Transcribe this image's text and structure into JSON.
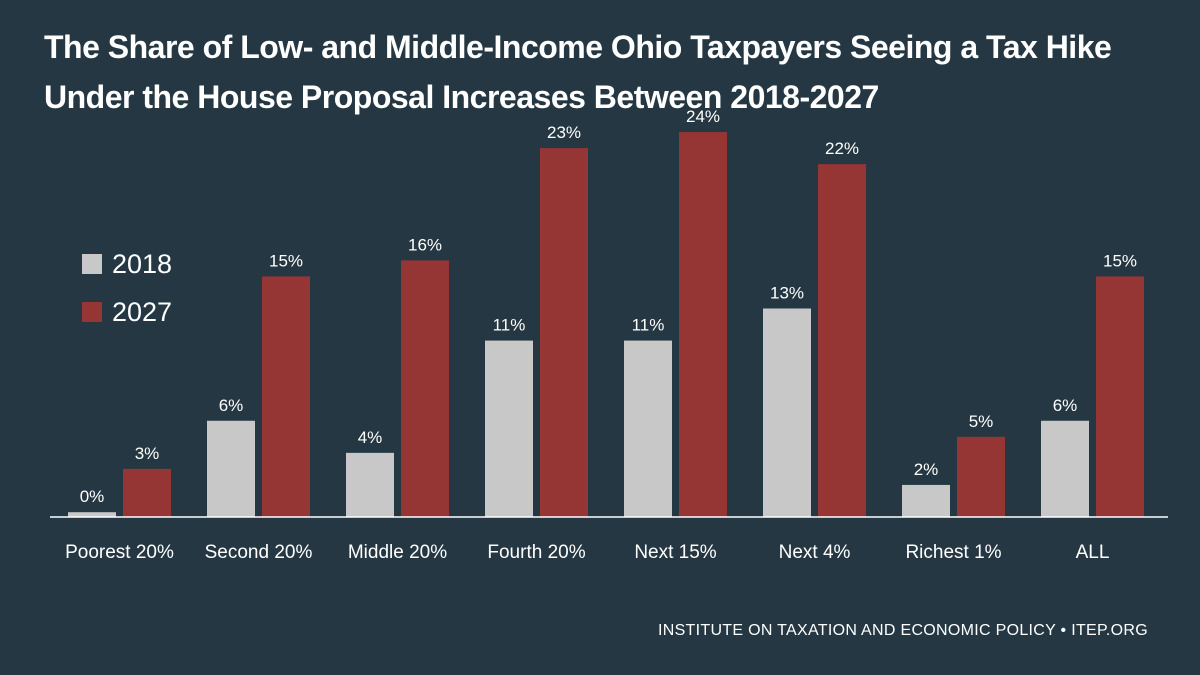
{
  "title": "The Share of Low- and Middle-Income Ohio Taxpayers Seeing a Tax Hike Under the House Proposal Increases Between 2018-2027",
  "footer": "INSTITUTE ON TAXATION AND ECONOMIC POLICY • ITEP.ORG",
  "colors": {
    "background": "#243742",
    "series_2018": "#c8c8c8",
    "series_2027": "#963634",
    "axis": "#ffffff",
    "text": "#ffffff"
  },
  "chart_data": {
    "type": "bar",
    "title": "The Share of Low- and Middle-Income Ohio Taxpayers Seeing a Tax Hike Under the House Proposal Increases Between 2018-2027",
    "xlabel": "",
    "ylabel": "",
    "ylim": [
      0,
      26
    ],
    "grid": false,
    "legend_position": "left",
    "value_suffix": "%",
    "categories": [
      "Poorest 20%",
      "Second 20%",
      "Middle 20%",
      "Fourth 20%",
      "Next 15%",
      "Next 4%",
      "Richest 1%",
      "ALL"
    ],
    "series": [
      {
        "name": "2018",
        "color": "#c8c8c8",
        "values": [
          0.3,
          6,
          4,
          11,
          11,
          13,
          2,
          6
        ],
        "labels": [
          "0%",
          "6%",
          "4%",
          "11%",
          "11%",
          "13%",
          "2%",
          "6%"
        ]
      },
      {
        "name": "2027",
        "color": "#963634",
        "values": [
          3,
          15,
          16,
          23,
          24,
          22,
          5,
          15
        ],
        "labels": [
          "3%",
          "15%",
          "16%",
          "23%",
          "24%",
          "22%",
          "5%",
          "15%"
        ]
      }
    ]
  }
}
